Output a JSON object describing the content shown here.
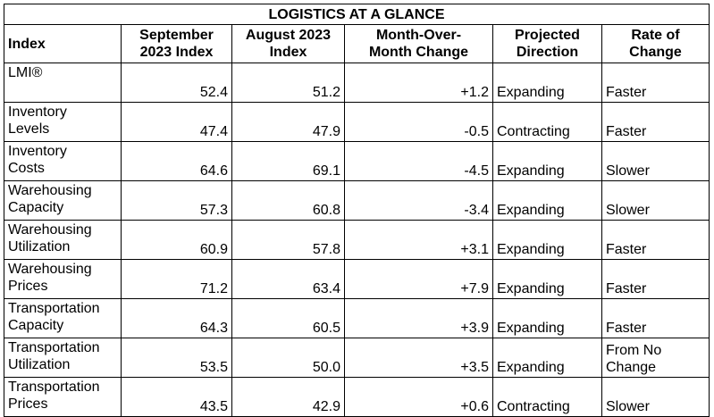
{
  "title": "LOGISTICS AT A GLANCE",
  "headers": {
    "index": "Index",
    "sep_line1": "September",
    "sep_line2": "2023 Index",
    "aug_line1": "August 2023",
    "aug_line2": "Index",
    "mom_line1": "Month-Over-",
    "mom_line2": "Month Change",
    "proj_line1": "Projected",
    "proj_line2": "Direction",
    "rate_line1": "Rate of",
    "rate_line2": "Change"
  },
  "rows": [
    {
      "name1": "LMI®",
      "name2": "",
      "sep": "52.4",
      "aug": "51.2",
      "mom": "+1.2",
      "direction": "Expanding",
      "rate1": "Faster",
      "rate2": ""
    },
    {
      "name1": "Inventory",
      "name2": "Levels",
      "sep": "47.4",
      "aug": "47.9",
      "mom": "-0.5",
      "direction": "Contracting",
      "rate1": "Faster",
      "rate2": ""
    },
    {
      "name1": "Inventory",
      "name2": "Costs",
      "sep": "64.6",
      "aug": "69.1",
      "mom": "-4.5",
      "direction": "Expanding",
      "rate1": "Slower",
      "rate2": ""
    },
    {
      "name1": "Warehousing",
      "name2": "Capacity",
      "sep": "57.3",
      "aug": "60.8",
      "mom": "-3.4",
      "direction": "Expanding",
      "rate1": "Slower",
      "rate2": ""
    },
    {
      "name1": "Warehousing",
      "name2": "Utilization",
      "sep": "60.9",
      "aug": "57.8",
      "mom": "+3.1",
      "direction": "Expanding",
      "rate1": "Faster",
      "rate2": ""
    },
    {
      "name1": "Warehousing",
      "name2": "Prices",
      "sep": "71.2",
      "aug": "63.4",
      "mom": "+7.9",
      "direction": "Expanding",
      "rate1": "Faster",
      "rate2": ""
    },
    {
      "name1": "Transportation",
      "name2": "Capacity",
      "sep": "64.3",
      "aug": "60.5",
      "mom": "+3.9",
      "direction": "Expanding",
      "rate1": "Faster",
      "rate2": ""
    },
    {
      "name1": "Transportation",
      "name2": "Utilization",
      "sep": "53.5",
      "aug": "50.0",
      "mom": "+3.5",
      "direction": "Expanding",
      "rate1": "From No",
      "rate2": "Change"
    },
    {
      "name1": "Transportation",
      "name2": "Prices",
      "sep": "43.5",
      "aug": "42.9",
      "mom": "+0.6",
      "direction": "Contracting",
      "rate1": "Slower",
      "rate2": ""
    }
  ]
}
